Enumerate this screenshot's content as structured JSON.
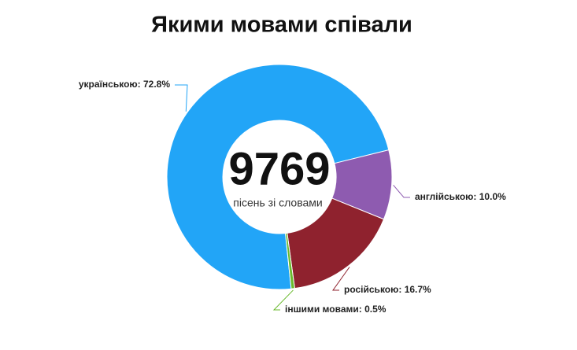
{
  "chart_data": {
    "type": "donut",
    "title": "Якими мовами співали",
    "center_value": 9769,
    "center_label": "пісень зі словами",
    "values": [
      72.8,
      10.0,
      16.7,
      0.5
    ],
    "value_labels": [
      "українською: 72.8%",
      "англійською: 10.0%",
      "російською: 16.7%",
      "іншими мовами: 0.5%"
    ],
    "colors": [
      "#22a5f7",
      "#8e5bb0",
      "#8f222e",
      "#6aba2e"
    ]
  }
}
